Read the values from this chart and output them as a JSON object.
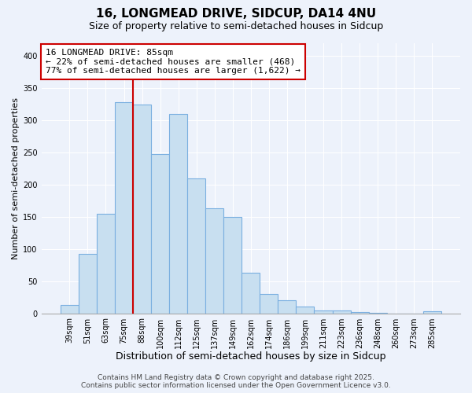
{
  "title_line1": "16, LONGMEAD DRIVE, SIDCUP, DA14 4NU",
  "title_line2": "Size of property relative to semi-detached houses in Sidcup",
  "xlabel": "Distribution of semi-detached houses by size in Sidcup",
  "ylabel": "Number of semi-detached properties",
  "categories": [
    "39sqm",
    "51sqm",
    "63sqm",
    "75sqm",
    "88sqm",
    "100sqm",
    "112sqm",
    "125sqm",
    "137sqm",
    "149sqm",
    "162sqm",
    "174sqm",
    "186sqm",
    "199sqm",
    "211sqm",
    "223sqm",
    "236sqm",
    "248sqm",
    "260sqm",
    "273sqm",
    "285sqm"
  ],
  "values": [
    13,
    92,
    155,
    328,
    325,
    248,
    310,
    210,
    163,
    150,
    63,
    30,
    20,
    10,
    5,
    4,
    2,
    1,
    0,
    0,
    3
  ],
  "bar_color": "#c8dff0",
  "bar_edge_color": "#7aafe0",
  "vline_color": "#cc0000",
  "vline_x_index": 3.5,
  "annotation_title": "16 LONGMEAD DRIVE: 85sqm",
  "annotation_line1": "← 22% of semi-detached houses are smaller (468)",
  "annotation_line2": "77% of semi-detached houses are larger (1,622) →",
  "annotation_box_facecolor": "#ffffff",
  "annotation_box_edgecolor": "#cc0000",
  "ylim": [
    0,
    420
  ],
  "yticks": [
    0,
    50,
    100,
    150,
    200,
    250,
    300,
    350,
    400
  ],
  "background_color": "#edf2fb",
  "grid_color": "#ffffff",
  "footer_line1": "Contains HM Land Registry data © Crown copyright and database right 2025.",
  "footer_line2": "Contains public sector information licensed under the Open Government Licence v3.0.",
  "title_fontsize": 11,
  "subtitle_fontsize": 9,
  "xlabel_fontsize": 9,
  "ylabel_fontsize": 8,
  "tick_fontsize": 7,
  "annotation_fontsize": 8,
  "footer_fontsize": 6.5
}
